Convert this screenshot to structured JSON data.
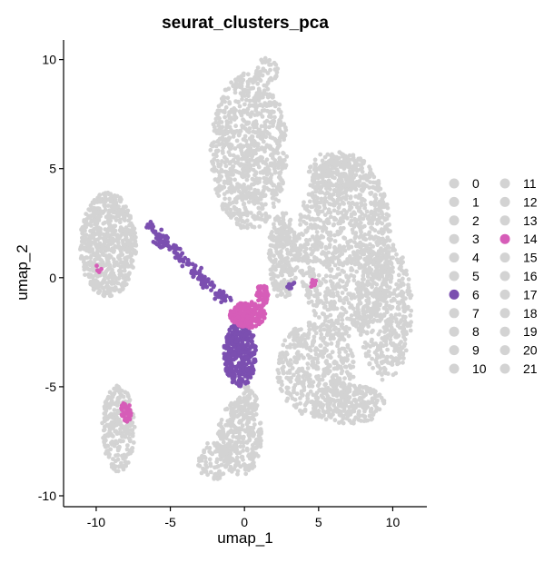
{
  "chart_data": {
    "type": "scatter",
    "title": "seurat_clusters_pca",
    "xlabel": "umap_1",
    "ylabel": "umap_2",
    "xlim": [
      -12.2,
      12.3
    ],
    "ylim": [
      -10.5,
      10.9
    ],
    "x_ticks": [
      -10,
      -5,
      0,
      5,
      10
    ],
    "y_ticks": [
      -10,
      -5,
      0,
      5,
      10
    ],
    "grid": false,
    "legend_position": "right",
    "default_color": "#D3D3D3",
    "legend": [
      {
        "label": "0",
        "color": "#D3D3D3"
      },
      {
        "label": "1",
        "color": "#D3D3D3"
      },
      {
        "label": "2",
        "color": "#D3D3D3"
      },
      {
        "label": "3",
        "color": "#D3D3D3"
      },
      {
        "label": "4",
        "color": "#D3D3D3"
      },
      {
        "label": "5",
        "color": "#D3D3D3"
      },
      {
        "label": "6",
        "color": "#7B4FB0"
      },
      {
        "label": "7",
        "color": "#D3D3D3"
      },
      {
        "label": "8",
        "color": "#D3D3D3"
      },
      {
        "label": "9",
        "color": "#D3D3D3"
      },
      {
        "label": "10",
        "color": "#D3D3D3"
      },
      {
        "label": "11",
        "color": "#D3D3D3"
      },
      {
        "label": "12",
        "color": "#D3D3D3"
      },
      {
        "label": "13",
        "color": "#D3D3D3"
      },
      {
        "label": "14",
        "color": "#D65DB8"
      },
      {
        "label": "15",
        "color": "#D3D3D3"
      },
      {
        "label": "16",
        "color": "#D3D3D3"
      },
      {
        "label": "17",
        "color": "#D3D3D3"
      },
      {
        "label": "18",
        "color": "#D3D3D3"
      },
      {
        "label": "19",
        "color": "#D3D3D3"
      },
      {
        "label": "20",
        "color": "#D3D3D3"
      },
      {
        "label": "21",
        "color": "#D3D3D3"
      }
    ],
    "highlighted_clusters": [
      "6",
      "14"
    ],
    "point_regions": [
      {
        "cluster": "other",
        "shape": "ellipse",
        "cx": 0.3,
        "cy": 5.8,
        "rx": 2.6,
        "ry": 3.6,
        "n": 900
      },
      {
        "cluster": "other",
        "shape": "ellipse",
        "cx": 1.5,
        "cy": 9.5,
        "rx": 0.8,
        "ry": 0.6,
        "n": 40
      },
      {
        "cluster": "other",
        "shape": "ellipse",
        "cx": 6.8,
        "cy": 1.5,
        "rx": 3.2,
        "ry": 4.2,
        "n": 1100
      },
      {
        "cluster": "other",
        "shape": "ellipse",
        "cx": 9.5,
        "cy": -1.5,
        "rx": 1.8,
        "ry": 3.2,
        "n": 450
      },
      {
        "cluster": "other",
        "shape": "ellipse",
        "cx": 4.8,
        "cy": -4.2,
        "rx": 2.6,
        "ry": 2.2,
        "n": 450
      },
      {
        "cluster": "other",
        "shape": "ellipse",
        "cx": 7.0,
        "cy": -5.8,
        "rx": 2.5,
        "ry": 0.9,
        "n": 220
      },
      {
        "cluster": "other",
        "shape": "ellipse",
        "cx": 2.6,
        "cy": 1.0,
        "rx": 1.0,
        "ry": 2.0,
        "n": 260
      },
      {
        "cluster": "other",
        "shape": "ellipse",
        "cx": 6.0,
        "cy": 4.8,
        "rx": 1.8,
        "ry": 1.0,
        "n": 160
      },
      {
        "cluster": "other",
        "shape": "ellipse",
        "cx": -9.2,
        "cy": 1.5,
        "rx": 1.9,
        "ry": 2.4,
        "n": 650
      },
      {
        "cluster": "other",
        "shape": "ellipse",
        "cx": -8.5,
        "cy": -6.9,
        "rx": 1.1,
        "ry": 2.0,
        "n": 260
      },
      {
        "cluster": "other",
        "shape": "ellipse",
        "cx": -0.3,
        "cy": -7.3,
        "rx": 1.5,
        "ry": 1.8,
        "n": 280
      },
      {
        "cluster": "other",
        "shape": "ellipse",
        "cx": -2.0,
        "cy": -8.4,
        "rx": 1.2,
        "ry": 0.9,
        "n": 90
      },
      {
        "cluster": "other",
        "shape": "ellipse",
        "cx": 0.2,
        "cy": -5.8,
        "rx": 0.7,
        "ry": 0.8,
        "n": 60
      },
      {
        "cluster": "6",
        "shape": "ellipse",
        "cx": -0.3,
        "cy": -3.5,
        "rx": 1.1,
        "ry": 1.5,
        "n": 380
      },
      {
        "cluster": "6",
        "shape": "line",
        "x1": -6.5,
        "y1": 2.3,
        "x2": -1.2,
        "y2": -1.0,
        "spread": 0.35,
        "n": 150
      },
      {
        "cluster": "6",
        "shape": "ellipse",
        "cx": 3.2,
        "cy": -0.4,
        "rx": 0.5,
        "ry": 0.2,
        "n": 8
      },
      {
        "cluster": "14",
        "shape": "ellipse",
        "cx": 0.2,
        "cy": -1.7,
        "rx": 1.2,
        "ry": 0.6,
        "n": 220
      },
      {
        "cluster": "14",
        "shape": "ellipse",
        "cx": 1.2,
        "cy": -0.8,
        "rx": 0.4,
        "ry": 0.5,
        "n": 60
      },
      {
        "cluster": "14",
        "shape": "ellipse",
        "cx": -8.0,
        "cy": -6.2,
        "rx": 0.35,
        "ry": 0.5,
        "n": 40
      },
      {
        "cluster": "14",
        "shape": "ellipse",
        "cx": 4.5,
        "cy": -0.3,
        "rx": 0.5,
        "ry": 0.2,
        "n": 8
      },
      {
        "cluster": "14",
        "shape": "ellipse",
        "cx": -9.8,
        "cy": 0.6,
        "rx": 0.2,
        "ry": 0.5,
        "n": 4
      }
    ]
  }
}
